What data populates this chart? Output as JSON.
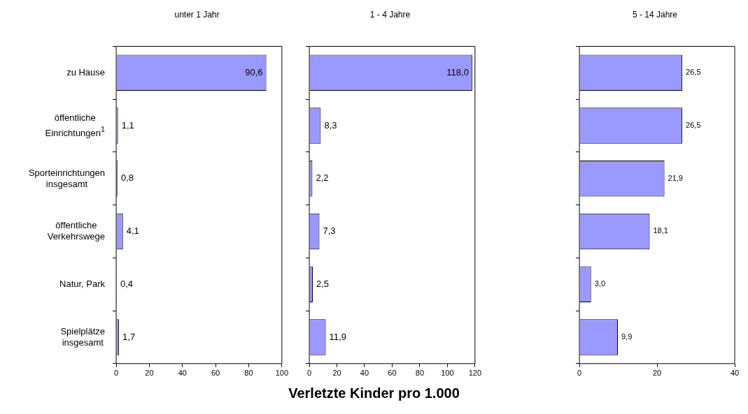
{
  "chart_data": [
    {
      "type": "bar",
      "orientation": "horizontal",
      "title": "unter 1 Jahr",
      "categories": [
        "zu Hause",
        "öffentliche\nEinrichtungen$^{1}$",
        "Sporteinrichtungen\ninsgesamt",
        "öffentliche\nVerkehrswege",
        "Natur, Park",
        "Spielplätze\ninsgesamt"
      ],
      "values": [
        90.6,
        1.1,
        0.8,
        4.1,
        0.4,
        1.7
      ],
      "value_labels": [
        "90,6",
        "1,1",
        "0,8",
        "4,1",
        "0,4",
        "1,7"
      ],
      "color": "#9999ff",
      "xlim": [
        0,
        100
      ],
      "xticks": [
        0,
        20,
        40,
        60,
        80,
        100
      ],
      "grid": false
    },
    {
      "type": "bar",
      "orientation": "horizontal",
      "title": "1 - 4 Jahre",
      "xlabel": "Verletzte Kinder pro 1.000",
      "categories": [
        null,
        null,
        null,
        null,
        null,
        null
      ],
      "values": [
        118.0,
        8.3,
        2.2,
        7.3,
        2.5,
        11.9
      ],
      "value_labels": [
        "118,0",
        "8,3",
        "2,2",
        "7,3",
        "2,5",
        "11,9"
      ],
      "color": "#9999ff",
      "xlim": [
        0,
        120
      ],
      "xticks": [
        0,
        20,
        40,
        60,
        80,
        100,
        120
      ],
      "grid": false,
      "tick_labels": "x"
    },
    {
      "type": "bar",
      "orientation": "horizontal",
      "title": "5 - 14 Jahre",
      "categories": [
        null,
        null,
        null,
        null,
        null,
        null
      ],
      "values": [
        26.5,
        26.5,
        21.9,
        18.1,
        3.0,
        9.9
      ],
      "value_labels": [
        "26,5",
        "26,5",
        "21,9",
        "18,1",
        "3,0",
        "9,9"
      ],
      "color": "#9999ff",
      "xlim": [
        0,
        40
      ],
      "xticks": [
        0,
        20,
        40
      ],
      "grid": false,
      "tick_labels": "x"
    }
  ]
}
